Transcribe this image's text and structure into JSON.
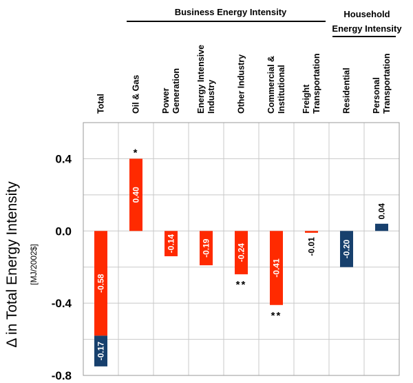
{
  "chart_data": {
    "type": "bar",
    "stacked": true,
    "ylabel": "Δ in Total Energy Intensity",
    "ylabel_unit": "[MJ/2002$]",
    "ylim": [
      -0.8,
      0.6
    ],
    "yticks": [
      -0.8,
      -0.4,
      0.0,
      0.4
    ],
    "ytick_labels": [
      "-0.8",
      "-0.4",
      "0.0",
      "0.4"
    ],
    "grid": true,
    "groups": [
      {
        "title_lines": [
          "Business Energy Intensity"
        ],
        "from": 1,
        "to": 6
      },
      {
        "title_lines": [
          "Household",
          "Energy Intensity"
        ],
        "from": 7,
        "to": 8
      }
    ],
    "categories": [
      {
        "lines": [
          "Total"
        ]
      },
      {
        "lines": [
          "Oil & Gas"
        ]
      },
      {
        "lines": [
          "Power",
          "Generation"
        ]
      },
      {
        "lines": [
          "Energy Intensive",
          "Industry"
        ]
      },
      {
        "lines": [
          "Other Industry"
        ]
      },
      {
        "lines": [
          "Commercial &",
          "Institutional"
        ]
      },
      {
        "lines": [
          "Freight",
          "Transportation"
        ]
      },
      {
        "lines": [
          "Residential"
        ]
      },
      {
        "lines": [
          "Personal",
          "Transportation"
        ]
      }
    ],
    "series": [
      {
        "color": "#ff2a00",
        "values": [
          -0.58,
          0.4,
          -0.14,
          -0.19,
          -0.24,
          -0.41,
          -0.01,
          null,
          null
        ],
        "labels": [
          "-0.58",
          "0.40",
          "-0.14",
          "-0.19",
          "-0.24",
          "-0.41",
          "-0.01",
          "",
          ""
        ]
      },
      {
        "color": "#17406d",
        "values": [
          -0.17,
          null,
          null,
          null,
          null,
          null,
          null,
          -0.2,
          0.04
        ],
        "labels": [
          "-0.17",
          "",
          "",
          "",
          "",
          "",
          "",
          "-0.20",
          "0.04"
        ]
      }
    ],
    "significance": [
      "",
      "*",
      "",
      "",
      "**",
      "**",
      "",
      "",
      ""
    ]
  }
}
